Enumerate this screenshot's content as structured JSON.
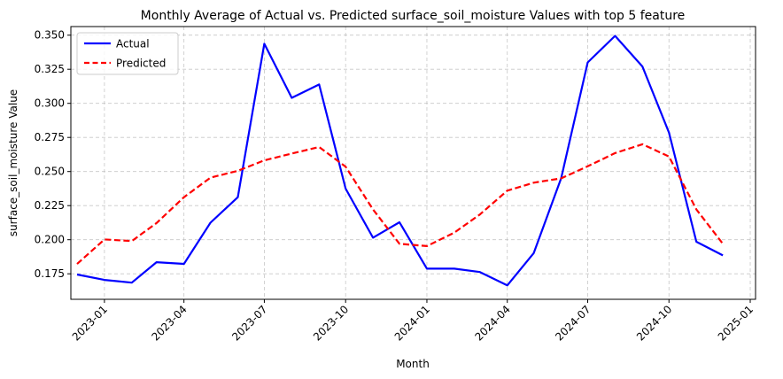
{
  "chart_data": {
    "type": "line",
    "title": "Monthly Average of Actual vs. Predicted surface_soil_moisture Values with top 5 feature",
    "xlabel": "Month",
    "ylabel": "surface_soil_moisture Value",
    "x": [
      "2022-12-01",
      "2023-01-01",
      "2023-02-01",
      "2023-03-01",
      "2023-04-01",
      "2023-05-01",
      "2023-06-01",
      "2023-07-01",
      "2023-08-01",
      "2023-09-01",
      "2023-10-01",
      "2023-11-01",
      "2023-12-01",
      "2024-01-01",
      "2024-02-01",
      "2024-03-01",
      "2024-04-01",
      "2024-05-01",
      "2024-06-01",
      "2024-07-01",
      "2024-08-01",
      "2024-09-01",
      "2024-10-01",
      "2024-11-01",
      "2024-12-01"
    ],
    "x_ticks": [
      "2023-01",
      "2023-04",
      "2023-07",
      "2023-10",
      "2024-01",
      "2024-04",
      "2024-07",
      "2024-10",
      "2025-01"
    ],
    "y_ticks": [
      "0.175",
      "0.200",
      "0.225",
      "0.250",
      "0.275",
      "0.300",
      "0.325",
      "0.350"
    ],
    "ylim": [
      0.1563,
      0.3563
    ],
    "grid": true,
    "legend_position": "top-left",
    "series": [
      {
        "name": "Actual",
        "color": "#0000ff",
        "style": "solid",
        "values": [
          0.1745,
          0.1705,
          0.1685,
          0.1835,
          0.1823,
          0.2125,
          0.2312,
          0.3437,
          0.304,
          0.3138,
          0.2375,
          0.2015,
          0.2128,
          0.1788,
          0.1788,
          0.1763,
          0.1665,
          0.1902,
          0.2452,
          0.33,
          0.3495,
          0.327,
          0.2785,
          0.1985,
          0.1885
        ]
      },
      {
        "name": "Predicted",
        "color": "#ff0000",
        "style": "dashed",
        "values": [
          0.1822,
          0.2002,
          0.199,
          0.2122,
          0.2312,
          0.2455,
          0.2505,
          0.2582,
          0.2632,
          0.268,
          0.2535,
          0.2222,
          0.197,
          0.1953,
          0.2052,
          0.2185,
          0.236,
          0.2418,
          0.245,
          0.2538,
          0.2635,
          0.27,
          0.261,
          0.2222,
          0.197
        ]
      }
    ]
  }
}
